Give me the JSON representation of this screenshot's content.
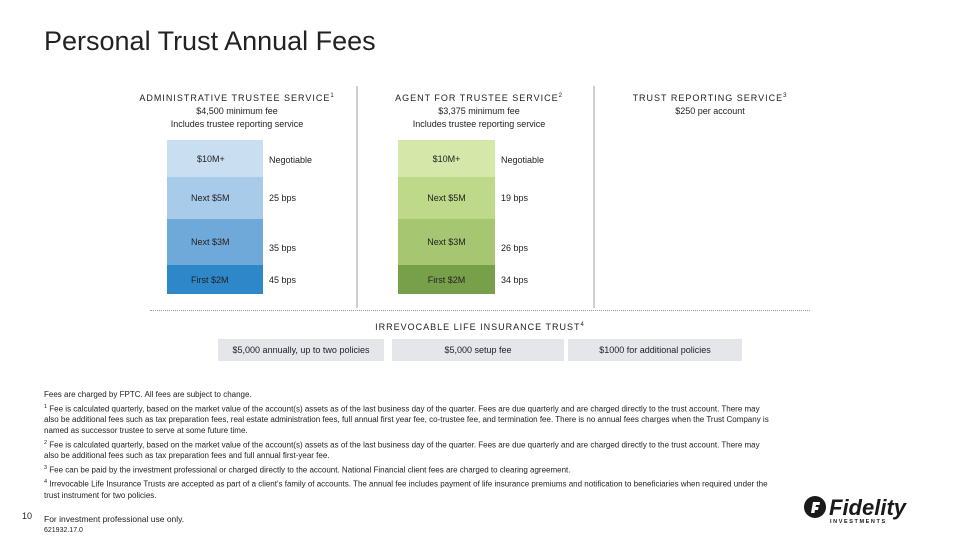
{
  "title": "Personal Trust Annual Fees",
  "services": [
    {
      "heading": "ADMINISTRATIVE TRUSTEE SERVICE",
      "sup": "1",
      "line1": "$4,500 minimum fee",
      "line2": "Includes trustee reporting service"
    },
    {
      "heading": "AGENT FOR TRUSTEE SERVICE",
      "sup": "2",
      "line1": "$3,375 minimum fee",
      "line2": "Includes trustee reporting service"
    },
    {
      "heading": "TRUST REPORTING SERVICE",
      "sup": "3",
      "line1": "$250 per account"
    }
  ],
  "admin_tiers": [
    {
      "tier": "$10M+",
      "fee": "Negotiable"
    },
    {
      "tier": "Next $5M",
      "fee": "25 bps"
    },
    {
      "tier": "Next $3M",
      "fee": "35 bps"
    },
    {
      "tier": "First $2M",
      "fee": "45 bps"
    }
  ],
  "agent_tiers": [
    {
      "tier": "$10M+",
      "fee": "Negotiable"
    },
    {
      "tier": "Next $5M",
      "fee": "19 bps"
    },
    {
      "tier": "Next $3M",
      "fee": "26 bps"
    },
    {
      "tier": "First $2M",
      "fee": "34 bps"
    }
  ],
  "ilit": {
    "heading": "IRREVOCABLE LIFE INSURANCE TRUST",
    "sup": "4",
    "cells": [
      "$5,000 annually, up to two policies",
      "$5,000 setup fee",
      "$1000 for additional policies"
    ]
  },
  "notes": {
    "intro": "Fees are charged by FPTC. All fees are subject to change.",
    "n1_sup": "1",
    "n1": "Fee is calculated quarterly, based on the market value of the account(s) assets as of the last business day of the quarter. Fees are due quarterly and are charged directly to the trust account. There may also be additional fees such as tax preparation fees, real estate administration fees, full annual first year fee, co-trustee fee, and termination fee. There is no annual fees charges when the Trust Company is named as successor trustee to serve at some future time.",
    "n2_sup": "2",
    "n2": "Fee is calculated quarterly, based on the market value of the account(s) assets as of the last business day of the quarter. Fees are due quarterly and are charged directly to the trust account. There may also be additional fees such as tax preparation fees and full annual first-year fee.",
    "n3_sup": "3",
    "n3": "Fee can be paid by the investment professional or charged directly to the account. National Financial client fees are charged to clearing agreement.",
    "n4_sup": "4",
    "n4": "Irrevocable Life Insurance Trusts are accepted as part of a client's family of accounts. The annual fee includes payment of life insurance premiums and notification to beneficiaries when required under the trust instrument for two policies."
  },
  "footer": {
    "page": "10",
    "use": "For investment professional use only.",
    "code": "621932.17.0"
  },
  "logo": {
    "text": "Fidelity",
    "sub": "INVESTMENTS"
  },
  "colors": {
    "blue": [
      "#c9dff1",
      "#a9cbea",
      "#6fa9da",
      "#2d87c9"
    ],
    "green": [
      "#d6e8a9",
      "#bed98a",
      "#a6c672",
      "#78a04a"
    ],
    "grey": "#e4e6ea"
  }
}
